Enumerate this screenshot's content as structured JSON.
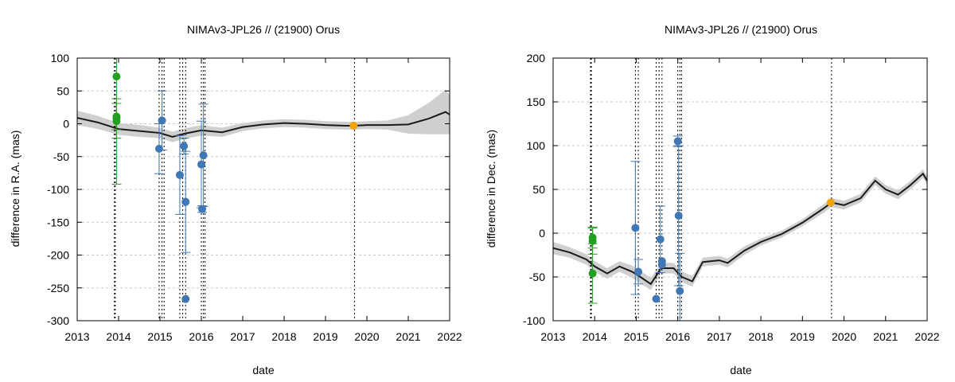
{
  "chart_data": [
    {
      "type": "scatter",
      "title": "NIMAv3-JPL26 // (21900) Orus",
      "xlabel": "date",
      "ylabel": "difference in R.A. (mas)",
      "xlim": [
        2013,
        2022
      ],
      "ylim": [
        -300,
        100
      ],
      "xticks": [
        "2013",
        "2014",
        "2015",
        "2016",
        "2017",
        "2018",
        "2019",
        "2020",
        "2021",
        "2022"
      ],
      "yticks": [
        "-300",
        "-250",
        "-200",
        "-150",
        "-100",
        "-50",
        "0",
        "50",
        "100"
      ],
      "grid": "y-dashed",
      "vlines": [
        2013.9,
        2013.92,
        2014.98,
        2015.05,
        2015.1,
        2015.48,
        2015.55,
        2015.62,
        2016.0,
        2016.05,
        2016.09,
        2019.7
      ],
      "model_curve": {
        "x": [
          2013.0,
          2013.5,
          2014.0,
          2014.5,
          2015.0,
          2015.3,
          2015.6,
          2016.0,
          2016.5,
          2017.0,
          2017.5,
          2018.0,
          2018.5,
          2019.0,
          2019.5,
          2019.7,
          2020.0,
          2020.5,
          2021.0,
          2021.5,
          2021.9,
          2022.0
        ],
        "y": [
          9,
          2,
          -8,
          -11,
          -14,
          -20,
          -15,
          -10,
          -13,
          -5,
          -1,
          1,
          0,
          -2,
          -3,
          -3,
          -2,
          -2,
          -1,
          8,
          18,
          14
        ],
        "band": [
          11,
          10,
          9,
          9,
          8,
          8,
          8,
          8,
          7,
          6,
          6,
          6,
          6,
          6,
          6,
          6,
          6,
          7,
          14,
          24,
          34,
          30
        ]
      },
      "series": [
        {
          "color": "#22a022",
          "x": [
            2013.95,
            2013.95,
            2013.95,
            2013.95
          ],
          "y": [
            72,
            11,
            8,
            4
          ],
          "err": [
            0,
            20,
            30,
            96
          ]
        },
        {
          "color": "#3f78b4",
          "x": [
            2014.98,
            2015.05,
            2015.48,
            2015.58,
            2015.62,
            2015.62,
            2016.0,
            2016.02,
            2016.05
          ],
          "y": [
            -38,
            5,
            -78,
            -34,
            -119,
            -267,
            -62,
            -130,
            -48
          ],
          "err": [
            38,
            45,
            60,
            12,
            77,
            0,
            66,
            5,
            78
          ]
        },
        {
          "color": "#f4a20a",
          "x": [
            2019.68
          ],
          "y": [
            -3
          ],
          "err": [
            0
          ]
        }
      ]
    },
    {
      "type": "scatter",
      "title": "NIMAv3-JPL26 // (21900) Orus",
      "xlabel": "date",
      "ylabel": "difference in Dec. (mas)",
      "xlim": [
        2013,
        2022
      ],
      "ylim": [
        -100,
        200
      ],
      "xticks": [
        "2013",
        "2014",
        "2015",
        "2016",
        "2017",
        "2018",
        "2019",
        "2020",
        "2021",
        "2022"
      ],
      "yticks": [
        "-100",
        "-50",
        "0",
        "50",
        "100",
        "150",
        "200"
      ],
      "grid": "y-dashed",
      "vlines": [
        2013.9,
        2013.92,
        2014.98,
        2015.05,
        2015.48,
        2015.55,
        2015.62,
        2016.0,
        2016.05,
        2016.09,
        2019.7
      ],
      "model_curve": {
        "x": [
          2013.0,
          2013.4,
          2013.8,
          2014.0,
          2014.3,
          2014.6,
          2014.9,
          2015.1,
          2015.35,
          2015.6,
          2015.9,
          2016.1,
          2016.35,
          2016.6,
          2017.0,
          2017.2,
          2017.6,
          2018.0,
          2018.5,
          2019.0,
          2019.5,
          2019.7,
          2020.0,
          2020.4,
          2020.75,
          2021.0,
          2021.3,
          2021.6,
          2021.9,
          2022.0
        ],
        "y": [
          -17,
          -22,
          -30,
          -38,
          -46,
          -38,
          -44,
          -50,
          -58,
          -40,
          -40,
          -50,
          -55,
          -33,
          -31,
          -34,
          -20,
          -10,
          -1,
          12,
          28,
          35,
          32,
          40,
          60,
          50,
          44,
          55,
          68,
          60
        ],
        "band": [
          7,
          6,
          6,
          6,
          6,
          6,
          7,
          7,
          7,
          6,
          6,
          6,
          6,
          5,
          5,
          5,
          5,
          4,
          4,
          4,
          5,
          5,
          5,
          5,
          5,
          5,
          5,
          5,
          5,
          5
        ]
      },
      "series": [
        {
          "color": "#22a022",
          "x": [
            2013.95,
            2013.95,
            2013.95
          ],
          "y": [
            -5,
            -9,
            -46
          ],
          "err": [
            12,
            15,
            34
          ]
        },
        {
          "color": "#3f78b4",
          "x": [
            2014.98,
            2015.05,
            2015.48,
            2015.58,
            2015.62,
            2015.62,
            2016.0,
            2016.02,
            2016.05
          ],
          "y": [
            6,
            -44,
            -75,
            -7,
            -32,
            -36,
            105,
            20,
            -66
          ],
          "err": [
            76,
            14,
            0,
            38,
            0,
            0,
            6,
            80,
            43
          ]
        },
        {
          "color": "#f4a20a",
          "x": [
            2019.68
          ],
          "y": [
            35
          ],
          "err": [
            0
          ]
        }
      ]
    }
  ]
}
